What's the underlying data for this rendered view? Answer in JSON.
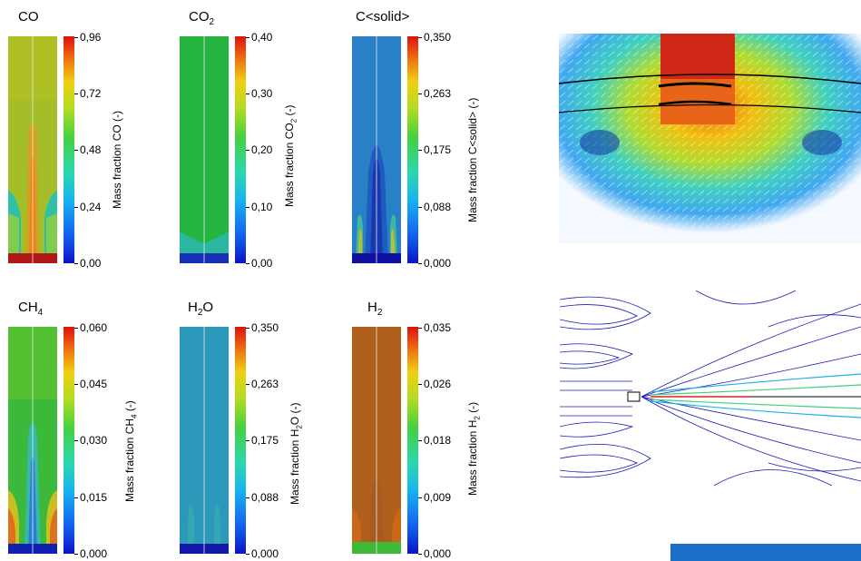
{
  "panels": [
    {
      "title_main": "CO",
      "title_sub": "",
      "title_tail": "",
      "ticks": [
        "0,96",
        "0,72",
        "0,48",
        "0,24",
        "0,00"
      ],
      "label_main": "Mass fraction CO (-)",
      "label_sub": "",
      "label_tail": ""
    },
    {
      "title_main": "CO",
      "title_sub": "2",
      "title_tail": "",
      "ticks": [
        "0,40",
        "0,30",
        "0,20",
        "0,10",
        "0,00"
      ],
      "label_main": "Mass fraction CO",
      "label_sub": "2",
      "label_tail": " (-)"
    },
    {
      "title_main": "C<solid>",
      "title_sub": "",
      "title_tail": "",
      "ticks": [
        "0,350",
        "0,263",
        "0,175",
        "0,088",
        "0,000"
      ],
      "label_main": "Mass fraction C<solid> (-)",
      "label_sub": "",
      "label_tail": ""
    },
    {
      "title_main": "CH",
      "title_sub": "4",
      "title_tail": "",
      "ticks": [
        "0,060",
        "0,045",
        "0,030",
        "0,015",
        "0,000"
      ],
      "label_main": "Mass fraction CH",
      "label_sub": "4",
      "label_tail": " (-)"
    },
    {
      "title_main": "H",
      "title_sub": "2",
      "title_tail": "O",
      "ticks": [
        "0,350",
        "0,263",
        "0,175",
        "0,088",
        "0,000"
      ],
      "label_main": "Mass fraction H",
      "label_sub": "2",
      "label_tail": "O (-)"
    },
    {
      "title_main": "H",
      "title_sub": "2",
      "title_tail": "",
      "ticks": [
        "0,035",
        "0,026",
        "0,018",
        "0,009",
        "0,000"
      ],
      "label_main": "Mass fraction H",
      "label_sub": "2",
      "label_tail": " (-)"
    }
  ],
  "colors": {
    "co_base": "#9cbc2c",
    "co2_base": "#22b23e",
    "csolid_base": "#2a7fc4",
    "ch4_base": "#38b83c",
    "h2o_base": "#2b96b8",
    "h2_base": "#b0601c",
    "inlet_blue": "#1010a8",
    "accent_bar": "#1c6fc8"
  }
}
